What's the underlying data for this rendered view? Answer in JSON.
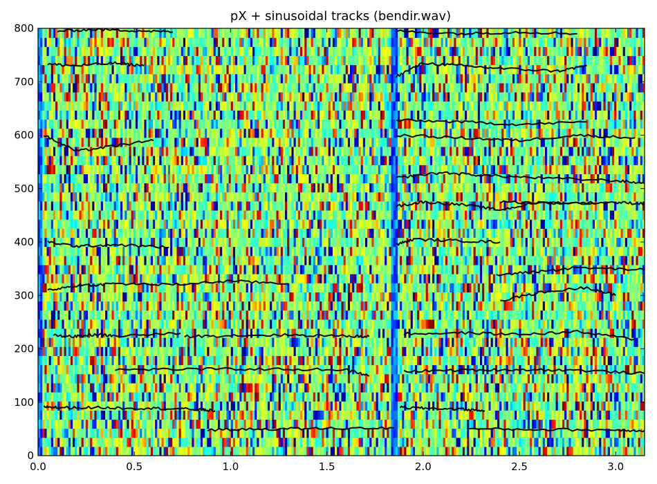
{
  "chart_data": {
    "type": "heatmap",
    "title": "pX + sinusoidal tracks (bendir.wav)",
    "xlabel": "",
    "ylabel": "",
    "xlim": [
      0.0,
      3.15
    ],
    "ylim": [
      0,
      800
    ],
    "xticks": [
      "0.0",
      "0.5",
      "1.0",
      "1.5",
      "2.0",
      "2.5",
      "3.0"
    ],
    "yticks": [
      "0",
      "100",
      "200",
      "300",
      "400",
      "500",
      "600",
      "700",
      "800"
    ],
    "colormap": "jet",
    "grid": false,
    "legend": "none",
    "overlay": "sinusoidal tracks",
    "track_color": "#000000",
    "tracks": [
      {
        "t": [
          0.03,
          0.1,
          0.3,
          0.5,
          0.7,
          0.85,
          0.92
        ],
        "f": [
          92,
          90,
          90,
          89,
          88,
          86,
          84
        ]
      },
      {
        "t": [
          1.88,
          2.0,
          2.2,
          2.32
        ],
        "f": [
          90,
          89,
          87,
          84
        ]
      },
      {
        "t": [
          0.88,
          1.2,
          1.5,
          1.85
        ],
        "f": [
          48,
          50,
          51,
          52
        ]
      },
      {
        "t": [
          2.24,
          2.6,
          3.0,
          3.15
        ],
        "f": [
          50,
          49,
          48,
          47
        ]
      },
      {
        "t": [
          0.4,
          0.8,
          1.2,
          1.6,
          1.72
        ],
        "f": [
          161,
          162,
          162,
          161,
          149
        ]
      },
      {
        "t": [
          1.9,
          2.2,
          2.5,
          2.8,
          3.15
        ],
        "f": [
          158,
          160,
          161,
          160,
          154
        ]
      },
      {
        "t": [
          0.08,
          0.2,
          0.3,
          0.4,
          0.74
        ],
        "f": [
          225,
          223,
          227,
          224,
          229
        ]
      },
      {
        "t": [
          0.76,
          1.0,
          1.3,
          1.6,
          1.72
        ],
        "f": [
          223,
          225,
          226,
          224,
          223
        ]
      },
      {
        "t": [
          1.9,
          2.2,
          2.5,
          2.8,
          3.1
        ],
        "f": [
          228,
          230,
          227,
          232,
          218
        ]
      },
      {
        "t": [
          0.05,
          0.2,
          0.4,
          0.7,
          1.0,
          1.3
        ],
        "f": [
          310,
          318,
          322,
          320,
          327,
          322
        ]
      },
      {
        "t": [
          2.4,
          2.6,
          2.85,
          3.0
        ],
        "f": [
          290,
          305,
          315,
          300
        ]
      },
      {
        "t": [
          2.38,
          2.6,
          2.8,
          3.15
        ],
        "f": [
          338,
          345,
          352,
          348
        ]
      },
      {
        "t": [
          0.05,
          0.2,
          0.4,
          0.68
        ],
        "f": [
          400,
          392,
          395,
          390
        ]
      },
      {
        "t": [
          1.86,
          1.95,
          2.2,
          2.4
        ],
        "f": [
          395,
          405,
          402,
          400
        ]
      },
      {
        "t": [
          1.86,
          2.0,
          2.2,
          2.4,
          2.6,
          2.9
        ],
        "f": [
          467,
          475,
          470,
          460,
          474,
          472
        ]
      },
      {
        "t": [
          2.4,
          2.7,
          3.0,
          3.15
        ],
        "f": [
          475,
          473,
          474,
          472
        ]
      },
      {
        "t": [
          0.03,
          0.2,
          0.4,
          0.6
        ],
        "f": [
          600,
          570,
          580,
          590
        ]
      },
      {
        "t": [
          1.86,
          2.1,
          2.3,
          2.6,
          3.0,
          3.15
        ],
        "f": [
          520,
          530,
          525,
          520,
          515,
          510
        ]
      },
      {
        "t": [
          1.86,
          2.2,
          2.5,
          2.8,
          3.1
        ],
        "f": [
          600,
          595,
          590,
          600,
          595
        ]
      },
      {
        "t": [
          0.05,
          0.2,
          0.4,
          0.55
        ],
        "f": [
          733,
          730,
          735,
          730
        ]
      },
      {
        "t": [
          1.86,
          2.0,
          2.2,
          2.4,
          2.7,
          2.85
        ],
        "f": [
          710,
          735,
          730,
          725,
          720,
          730
        ]
      },
      {
        "t": [
          1.86,
          2.2,
          2.5,
          2.85
        ],
        "f": [
          628,
          625,
          620,
          625
        ]
      },
      {
        "t": [
          0.1,
          0.3,
          0.5,
          0.7
        ],
        "f": [
          795,
          798,
          796,
          793
        ]
      },
      {
        "t": [
          1.86,
          2.2,
          2.5,
          2.8
        ],
        "f": [
          795,
          790,
          793,
          790
        ]
      }
    ]
  }
}
